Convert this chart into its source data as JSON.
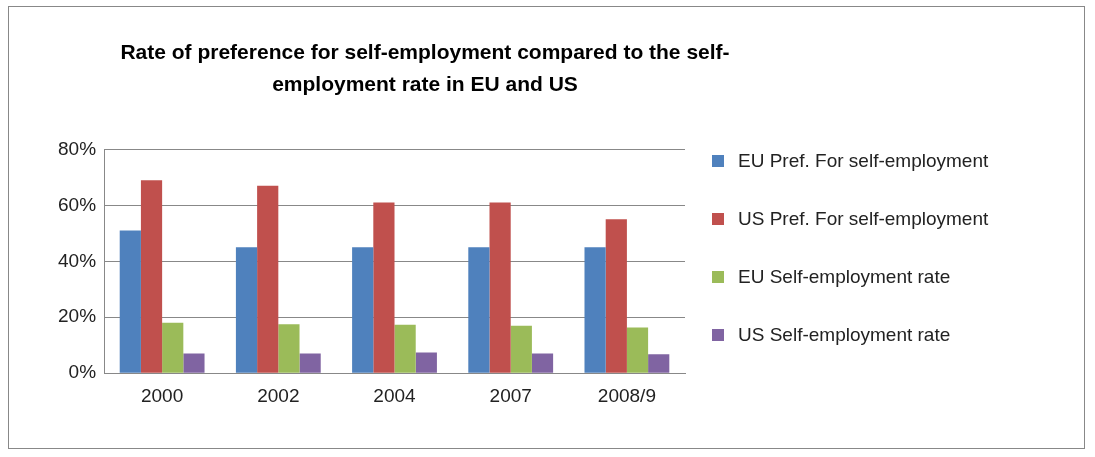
{
  "chart_data": {
    "type": "bar",
    "title": "Rate of preference for self-employment compared to the self-employment rate in EU and US",
    "categories": [
      "2000",
      "2002",
      "2004",
      "2007",
      "2008/9"
    ],
    "series": [
      {
        "name": "EU Pref. For self-employment",
        "color": "#4f81bd",
        "values": [
          51,
          45,
          45,
          45,
          45
        ]
      },
      {
        "name": "US Pref. For self-employment",
        "color": "#c0504d",
        "values": [
          69,
          67,
          61,
          61,
          55
        ]
      },
      {
        "name": "EU Self-employment rate",
        "color": "#9bbb59",
        "values": [
          18,
          17.5,
          17.3,
          17,
          16.3
        ]
      },
      {
        "name": "US Self-employment rate",
        "color": "#8064a2",
        "values": [
          7,
          7,
          7.4,
          7,
          6.8
        ]
      }
    ],
    "ylim": [
      0,
      80
    ],
    "yticks": [
      {
        "value": 0,
        "label": "0%"
      },
      {
        "value": 20,
        "label": "20%"
      },
      {
        "value": 40,
        "label": "40%"
      },
      {
        "value": 60,
        "label": "60%"
      },
      {
        "value": 80,
        "label": "80%"
      }
    ],
    "grid": "y",
    "legend": "right"
  }
}
